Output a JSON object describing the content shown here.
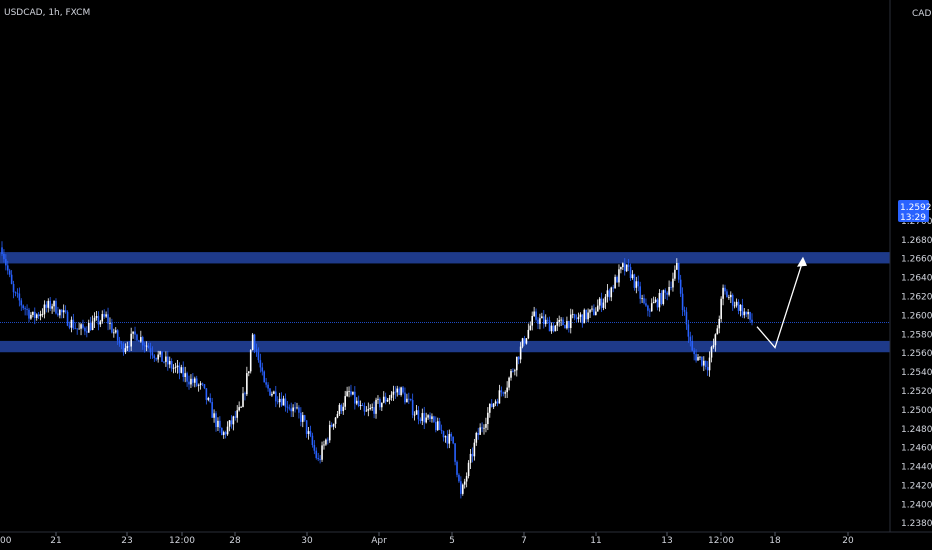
{
  "symbol_info": "USDCAD, 1h, FXCM",
  "currency_label": "CAD",
  "price_tag": {
    "price": "1.25926",
    "countdown": "13:29"
  },
  "colors": {
    "background": "#000000",
    "candle_up": "#ffffff",
    "candle_down": "#2962ff",
    "zone_fill": "#1e3a8a",
    "axis_text": "#d1d4dc",
    "price_line": "#2962ff",
    "arrow": "#ffffff"
  },
  "chart_data": {
    "type": "candlestick",
    "y_axis": {
      "range": [
        1.2376,
        1.2918
      ],
      "ticks": [
        "1.27000",
        "1.26800",
        "1.26600",
        "1.26400",
        "1.26200",
        "1.26000",
        "1.25800",
        "1.25600",
        "1.25400",
        "1.25200",
        "1.25000",
        "1.24800",
        "1.24600",
        "1.24400",
        "1.24200",
        "1.24000",
        "1.23800"
      ]
    },
    "x_axis": {
      "ticks": [
        "21",
        "23",
        "12:00",
        "28",
        "30",
        "Apr",
        "5",
        "7",
        "11",
        "13",
        "12:00",
        "18",
        "20"
      ]
    },
    "zones": [
      {
        "from": 1.2655,
        "to": 1.2667
      },
      {
        "from": 1.2561,
        "to": 1.2573
      }
    ],
    "current_price": 1.25926,
    "anchors": [
      [
        0,
        1.2672
      ],
      [
        6,
        1.2622
      ],
      [
        16,
        1.2598
      ],
      [
        26,
        1.2612
      ],
      [
        40,
        1.2584
      ],
      [
        54,
        1.2598
      ],
      [
        62,
        1.2566
      ],
      [
        70,
        1.258
      ],
      [
        80,
        1.2558
      ],
      [
        92,
        1.254
      ],
      [
        104,
        1.2522
      ],
      [
        114,
        1.2472
      ],
      [
        124,
        1.25
      ],
      [
        128,
        1.2545
      ],
      [
        130,
        1.258
      ],
      [
        136,
        1.2525
      ],
      [
        146,
        1.251
      ],
      [
        156,
        1.249
      ],
      [
        164,
        1.2445
      ],
      [
        172,
        1.249
      ],
      [
        180,
        1.2518
      ],
      [
        188,
        1.2495
      ],
      [
        198,
        1.251
      ],
      [
        206,
        1.2522
      ],
      [
        214,
        1.2498
      ],
      [
        224,
        1.2485
      ],
      [
        234,
        1.2465
      ],
      [
        238,
        1.2408
      ],
      [
        246,
        1.247
      ],
      [
        254,
        1.2505
      ],
      [
        262,
        1.2528
      ],
      [
        272,
        1.258
      ],
      [
        276,
        1.2598
      ],
      [
        286,
        1.2588
      ],
      [
        296,
        1.2595
      ],
      [
        306,
        1.2602
      ],
      [
        314,
        1.2622
      ],
      [
        322,
        1.265
      ],
      [
        326,
        1.2645
      ],
      [
        334,
        1.2605
      ],
      [
        344,
        1.2622
      ],
      [
        350,
        1.265
      ],
      [
        354,
        1.26
      ],
      [
        358,
        1.256
      ],
      [
        366,
        1.2548
      ],
      [
        370,
        1.2575
      ],
      [
        374,
        1.2625
      ],
      [
        382,
        1.261
      ],
      [
        389,
        1.2593
      ]
    ]
  }
}
